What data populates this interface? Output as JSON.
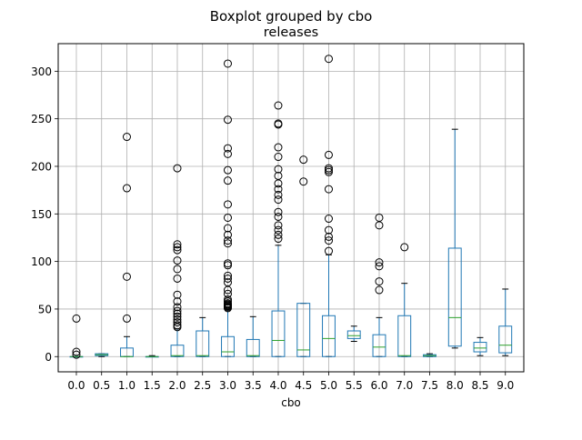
{
  "chart_data": {
    "type": "boxplot",
    "suptitle": "Boxplot grouped by cbo",
    "title": "releases",
    "xlabel": "cbo",
    "ylabel": "",
    "ylim": [
      -16,
      329
    ],
    "yticks": [
      0,
      50,
      100,
      150,
      200,
      250,
      300
    ],
    "grid": true,
    "colors": {
      "box": "#1f77b4",
      "median": "#2ca02c",
      "whisker": "#1f77b4",
      "cap": "#000000",
      "flier": "#000000",
      "grid": "#b0b0b0"
    },
    "categories": [
      "0.0",
      "0.5",
      "1.0",
      "1.5",
      "2.0",
      "2.5",
      "3.0",
      "3.5",
      "4.0",
      "4.5",
      "5.0",
      "5.5",
      "6.0",
      "7.0",
      "7.5",
      "8.0",
      "8.5",
      "9.0"
    ],
    "boxes": [
      {
        "q1": 0,
        "median": 0,
        "q3": 0,
        "whislo": 0,
        "whishi": 0,
        "fliers": [
          40,
          5,
          2
        ]
      },
      {
        "q1": 1,
        "median": 2,
        "q3": 3,
        "whislo": 0,
        "whishi": 3,
        "fliers": []
      },
      {
        "q1": 0,
        "median": 0,
        "q3": 9,
        "whislo": 0,
        "whishi": 21,
        "fliers": [
          231,
          177,
          84,
          40
        ]
      },
      {
        "q1": 0,
        "median": 0,
        "q3": 0,
        "whislo": 0,
        "whishi": 1,
        "fliers": []
      },
      {
        "q1": 0,
        "median": 1,
        "q3": 12,
        "whislo": 0,
        "whishi": 29,
        "fliers": [
          198,
          118,
          115,
          112,
          101,
          92,
          82,
          65,
          58,
          52,
          48,
          45,
          42,
          39,
          36,
          33,
          31
        ]
      },
      {
        "q1": 0,
        "median": 1,
        "q3": 27,
        "whislo": 0,
        "whishi": 41,
        "fliers": []
      },
      {
        "q1": 0,
        "median": 5,
        "q3": 21,
        "whislo": 0,
        "whishi": 50,
        "fliers": [
          308,
          249,
          219,
          213,
          196,
          185,
          160,
          146,
          135,
          128,
          122,
          119,
          98,
          96,
          85,
          82,
          78,
          70,
          66,
          60,
          58,
          56,
          55,
          54,
          53,
          52,
          51
        ]
      },
      {
        "q1": 0,
        "median": 1,
        "q3": 18,
        "whislo": 0,
        "whishi": 42,
        "fliers": []
      },
      {
        "q1": 0,
        "median": 17,
        "q3": 48,
        "whislo": 0,
        "whishi": 117,
        "fliers": [
          264,
          245,
          244,
          220,
          210,
          197,
          190,
          182,
          176,
          170,
          165,
          152,
          147,
          138,
          133,
          128,
          124
        ]
      },
      {
        "q1": 0,
        "median": 7,
        "q3": 56,
        "whislo": 0,
        "whishi": 56,
        "fliers": [
          207,
          184
        ]
      },
      {
        "q1": 0,
        "median": 19,
        "q3": 43,
        "whislo": 0,
        "whishi": 107,
        "fliers": [
          313,
          212,
          198,
          196,
          194,
          176,
          145,
          133,
          126,
          122,
          111
        ]
      },
      {
        "q1": 19,
        "median": 22,
        "q3": 27,
        "whislo": 16,
        "whishi": 32,
        "fliers": []
      },
      {
        "q1": 0,
        "median": 10,
        "q3": 23,
        "whislo": 0,
        "whishi": 41,
        "fliers": [
          146,
          138,
          99,
          95,
          79,
          70
        ]
      },
      {
        "q1": 0,
        "median": 1,
        "q3": 43,
        "whislo": 0,
        "whishi": 77,
        "fliers": [
          115
        ]
      },
      {
        "q1": 0,
        "median": 1,
        "q3": 2,
        "whislo": 0,
        "whishi": 3,
        "fliers": []
      },
      {
        "q1": 11,
        "median": 41,
        "q3": 114,
        "whislo": 9,
        "whishi": 239,
        "fliers": []
      },
      {
        "q1": 5,
        "median": 9,
        "q3": 15,
        "whislo": 1,
        "whishi": 20,
        "fliers": []
      },
      {
        "q1": 4,
        "median": 12,
        "q3": 32,
        "whislo": 1,
        "whishi": 71,
        "fliers": []
      }
    ]
  }
}
